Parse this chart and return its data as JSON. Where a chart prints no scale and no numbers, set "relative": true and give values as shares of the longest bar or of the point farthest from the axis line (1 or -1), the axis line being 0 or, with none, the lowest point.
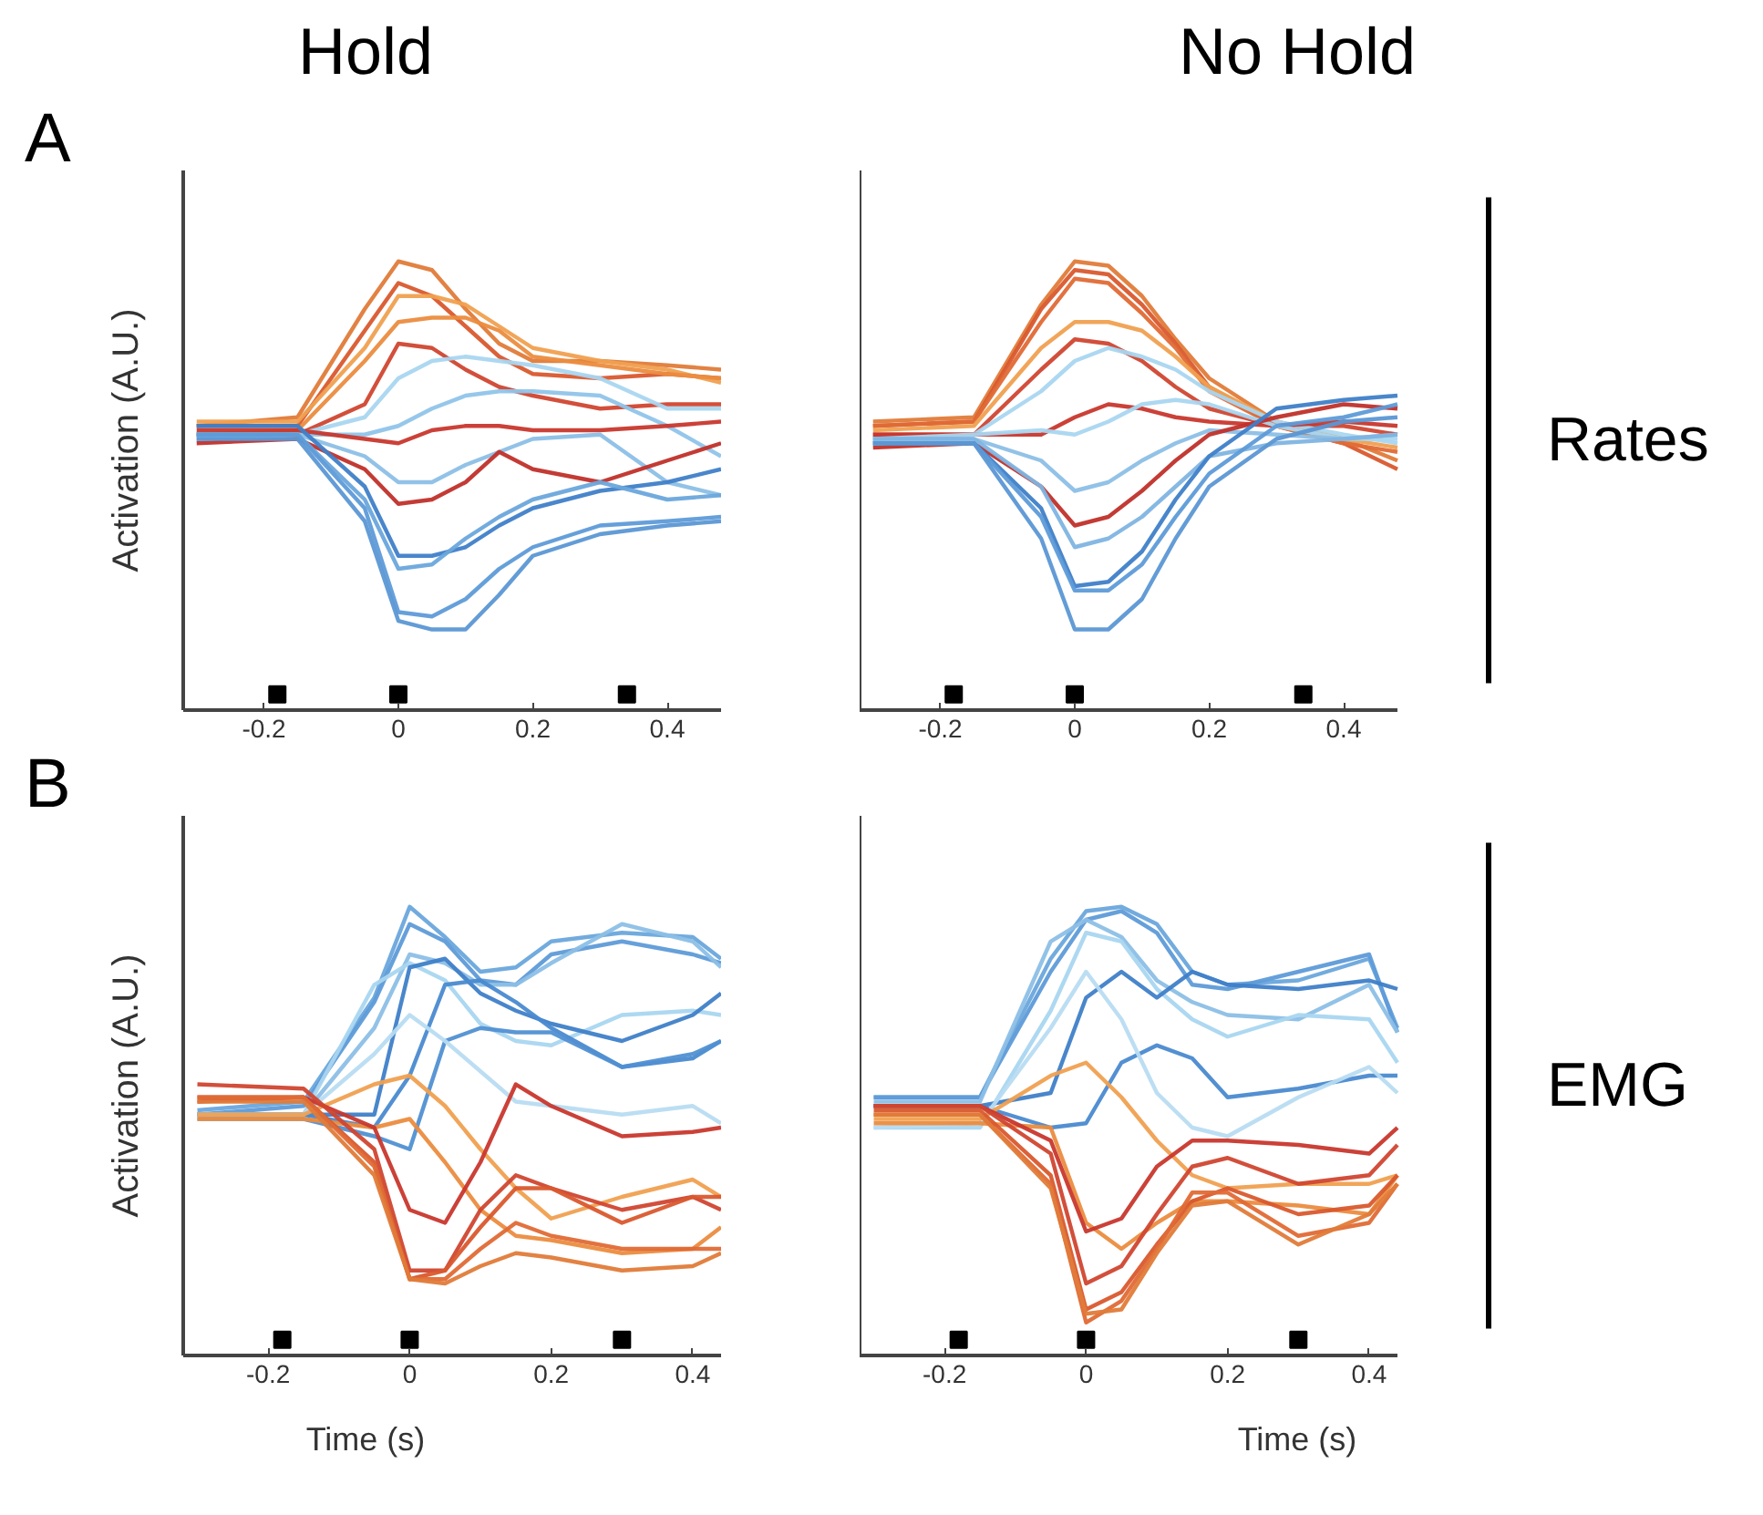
{
  "chart_data": [
    {
      "type": "line",
      "relative": true,
      "title": "Hold",
      "ylabel": "Activation (A.U.)",
      "annotations": [
        "A"
      ],
      "tick_labels": "x",
      "xlim": [
        -0.32,
        0.48
      ],
      "xticks": [
        -0.2,
        0,
        0.2,
        0.4
      ],
      "x": [
        -0.3,
        -0.15,
        -0.05,
        0,
        0.05,
        0.1,
        0.15,
        0.2,
        0.3,
        0.4,
        0.48
      ],
      "series": [
        {
          "color": "#e07b39",
          "values": [
            0.62,
            0.64,
            0.89,
            1.0,
            0.98,
            0.89,
            0.81,
            0.77,
            0.77,
            0.76,
            0.75
          ]
        },
        {
          "color": "#d9582e",
          "values": [
            0.62,
            0.62,
            0.84,
            0.95,
            0.92,
            0.85,
            0.78,
            0.74,
            0.73,
            0.74,
            0.73
          ]
        },
        {
          "color": "#f0a050",
          "values": [
            0.63,
            0.63,
            0.8,
            0.92,
            0.92,
            0.9,
            0.85,
            0.8,
            0.77,
            0.75,
            0.72
          ]
        },
        {
          "color": "#eb8c3f",
          "values": [
            0.6,
            0.61,
            0.77,
            0.86,
            0.87,
            0.87,
            0.84,
            0.78,
            0.76,
            0.74,
            0.73
          ]
        },
        {
          "color": "#d04630",
          "values": [
            0.6,
            0.6,
            0.67,
            0.81,
            0.8,
            0.75,
            0.71,
            0.69,
            0.66,
            0.67,
            0.67
          ]
        },
        {
          "color": "#a9d6f0",
          "values": [
            0.59,
            0.6,
            0.64,
            0.73,
            0.77,
            0.78,
            0.77,
            0.76,
            0.73,
            0.66,
            0.66
          ]
        },
        {
          "color": "#90c4ea",
          "values": [
            0.59,
            0.6,
            0.6,
            0.62,
            0.66,
            0.69,
            0.7,
            0.7,
            0.69,
            0.62,
            0.55
          ]
        },
        {
          "color": "#c8372d",
          "values": [
            0.61,
            0.61,
            0.59,
            0.58,
            0.61,
            0.62,
            0.62,
            0.61,
            0.61,
            0.62,
            0.63
          ]
        },
        {
          "color": "#8cbfe6",
          "values": [
            0.6,
            0.6,
            0.55,
            0.49,
            0.49,
            0.53,
            0.56,
            0.59,
            0.6,
            0.49,
            0.46
          ]
        },
        {
          "color": "#c0302a",
          "values": [
            0.58,
            0.59,
            0.52,
            0.44,
            0.45,
            0.49,
            0.56,
            0.52,
            0.49,
            0.54,
            0.58
          ]
        },
        {
          "color": "#3f7fc8",
          "values": [
            0.62,
            0.62,
            0.48,
            0.32,
            0.32,
            0.34,
            0.39,
            0.43,
            0.47,
            0.49,
            0.52
          ]
        },
        {
          "color": "#6aa6dc",
          "values": [
            0.6,
            0.6,
            0.45,
            0.29,
            0.3,
            0.36,
            0.41,
            0.45,
            0.49,
            0.45,
            0.46
          ]
        },
        {
          "color": "#5e9bd8",
          "values": [
            0.6,
            0.6,
            0.43,
            0.19,
            0.18,
            0.22,
            0.29,
            0.34,
            0.39,
            0.4,
            0.41
          ]
        },
        {
          "color": "#5b97d4",
          "values": [
            0.59,
            0.59,
            0.4,
            0.17,
            0.15,
            0.15,
            0.23,
            0.32,
            0.37,
            0.39,
            0.4
          ]
        },
        {
          "type": "scatter",
          "marker": "square",
          "color": "#000000",
          "x": [
            -0.18,
            0,
            0.34
          ],
          "values": [
            0,
            0,
            0
          ]
        }
      ]
    },
    {
      "type": "line",
      "relative": true,
      "title": "No Hold",
      "annotations": [
        "Rates"
      ],
      "tick_labels": "x",
      "xlim": [
        -0.32,
        0.48
      ],
      "xticks": [
        -0.2,
        0,
        0.2,
        0.4
      ],
      "x": [
        -0.3,
        -0.15,
        -0.05,
        0,
        0.05,
        0.1,
        0.15,
        0.2,
        0.3,
        0.4,
        0.48
      ],
      "series": [
        {
          "color": "#e07b39",
          "values": [
            0.63,
            0.64,
            0.9,
            1.0,
            0.99,
            0.92,
            0.82,
            0.73,
            0.63,
            0.59,
            0.54
          ]
        },
        {
          "color": "#d9582e",
          "values": [
            0.62,
            0.63,
            0.89,
            0.98,
            0.97,
            0.9,
            0.81,
            0.71,
            0.62,
            0.58,
            0.52
          ]
        },
        {
          "color": "#e06a35",
          "values": [
            0.62,
            0.63,
            0.86,
            0.96,
            0.95,
            0.88,
            0.8,
            0.7,
            0.62,
            0.58,
            0.56
          ]
        },
        {
          "color": "#f0a050",
          "values": [
            0.61,
            0.62,
            0.8,
            0.86,
            0.86,
            0.84,
            0.78,
            0.71,
            0.63,
            0.59,
            0.57
          ]
        },
        {
          "color": "#d04630",
          "values": [
            0.6,
            0.6,
            0.75,
            0.82,
            0.81,
            0.77,
            0.71,
            0.66,
            0.62,
            0.62,
            0.6
          ]
        },
        {
          "color": "#a9d6f0",
          "values": [
            0.59,
            0.6,
            0.7,
            0.77,
            0.8,
            0.78,
            0.75,
            0.7,
            0.63,
            0.6,
            0.58
          ]
        },
        {
          "color": "#c8372d",
          "values": [
            0.6,
            0.6,
            0.6,
            0.64,
            0.67,
            0.66,
            0.64,
            0.63,
            0.62,
            0.63,
            0.62
          ]
        },
        {
          "color": "#a9d6f0",
          "values": [
            0.59,
            0.6,
            0.61,
            0.6,
            0.63,
            0.67,
            0.68,
            0.67,
            0.62,
            0.59,
            0.59
          ]
        },
        {
          "color": "#8cbfe6",
          "values": [
            0.59,
            0.59,
            0.54,
            0.47,
            0.49,
            0.54,
            0.58,
            0.61,
            0.6,
            0.59,
            0.6
          ]
        },
        {
          "color": "#c0302a",
          "values": [
            0.57,
            0.58,
            0.48,
            0.39,
            0.41,
            0.47,
            0.54,
            0.6,
            0.64,
            0.67,
            0.66
          ]
        },
        {
          "color": "#7fb4e2",
          "values": [
            0.59,
            0.59,
            0.48,
            0.34,
            0.36,
            0.41,
            0.48,
            0.55,
            0.58,
            0.59,
            0.6
          ]
        },
        {
          "color": "#3f7fc8",
          "values": [
            0.58,
            0.58,
            0.43,
            0.25,
            0.26,
            0.33,
            0.45,
            0.55,
            0.66,
            0.68,
            0.69
          ]
        },
        {
          "color": "#5e9bd8",
          "values": [
            0.58,
            0.58,
            0.41,
            0.24,
            0.24,
            0.3,
            0.41,
            0.51,
            0.62,
            0.64,
            0.67
          ]
        },
        {
          "color": "#5b97d4",
          "values": [
            0.58,
            0.58,
            0.36,
            0.15,
            0.15,
            0.22,
            0.36,
            0.48,
            0.59,
            0.63,
            0.64
          ]
        },
        {
          "type": "scatter",
          "marker": "square",
          "color": "#000000",
          "x": [
            -0.18,
            0,
            0.34
          ],
          "values": [
            0,
            0,
            0
          ]
        }
      ]
    },
    {
      "type": "line",
      "relative": true,
      "xlabel": "Time (s)",
      "ylabel": "Activation (A.U.)",
      "annotations": [
        "B"
      ],
      "tick_labels": "x",
      "xlim": [
        -0.32,
        0.44
      ],
      "xticks": [
        -0.2,
        0,
        0.2,
        0.4
      ],
      "x": [
        -0.3,
        -0.15,
        -0.05,
        0,
        0.05,
        0.1,
        0.15,
        0.2,
        0.3,
        0.4,
        0.44
      ],
      "series": [
        {
          "color": "#6aa6dc",
          "values": [
            0.53,
            0.55,
            0.79,
            1.0,
            0.93,
            0.85,
            0.86,
            0.92,
            0.94,
            0.93,
            0.88
          ]
        },
        {
          "color": "#5e9bd8",
          "values": [
            0.52,
            0.54,
            0.78,
            0.96,
            0.92,
            0.83,
            0.82,
            0.89,
            0.92,
            0.89,
            0.87
          ]
        },
        {
          "color": "#8cbfe6",
          "values": [
            0.52,
            0.52,
            0.72,
            0.89,
            0.87,
            0.82,
            0.82,
            0.87,
            0.96,
            0.92,
            0.86
          ]
        },
        {
          "color": "#a9d6f0",
          "values": [
            0.52,
            0.52,
            0.82,
            0.87,
            0.83,
            0.73,
            0.69,
            0.68,
            0.75,
            0.76,
            0.75
          ]
        },
        {
          "color": "#3f7fc8",
          "values": [
            0.52,
            0.52,
            0.52,
            0.86,
            0.88,
            0.8,
            0.76,
            0.73,
            0.69,
            0.75,
            0.8
          ]
        },
        {
          "color": "#4a8ad0",
          "values": [
            0.52,
            0.52,
            0.49,
            0.61,
            0.82,
            0.83,
            0.78,
            0.72,
            0.63,
            0.65,
            0.69
          ]
        },
        {
          "color": "#5090d2",
          "values": [
            0.51,
            0.51,
            0.47,
            0.44,
            0.69,
            0.72,
            0.71,
            0.71,
            0.63,
            0.66,
            0.69
          ]
        },
        {
          "color": "#b8dcf2",
          "values": [
            0.52,
            0.52,
            0.66,
            0.75,
            0.69,
            0.62,
            0.55,
            0.54,
            0.52,
            0.54,
            0.5
          ]
        },
        {
          "color": "#f0a050",
          "values": [
            0.52,
            0.52,
            0.59,
            0.61,
            0.54,
            0.44,
            0.35,
            0.28,
            0.33,
            0.37,
            0.33
          ]
        },
        {
          "color": "#eb8c3f",
          "values": [
            0.51,
            0.51,
            0.49,
            0.51,
            0.41,
            0.3,
            0.24,
            0.23,
            0.2,
            0.21,
            0.26
          ]
        },
        {
          "color": "#c8372d",
          "values": [
            0.55,
            0.56,
            0.49,
            0.3,
            0.27,
            0.41,
            0.59,
            0.54,
            0.47,
            0.48,
            0.49
          ]
        },
        {
          "color": "#d04630",
          "values": [
            0.59,
            0.58,
            0.44,
            0.16,
            0.16,
            0.3,
            0.38,
            0.35,
            0.3,
            0.33,
            0.3
          ]
        },
        {
          "color": "#d9582e",
          "values": [
            0.56,
            0.56,
            0.41,
            0.14,
            0.16,
            0.26,
            0.35,
            0.35,
            0.27,
            0.33,
            0.33
          ]
        },
        {
          "color": "#e06a35",
          "values": [
            0.56,
            0.56,
            0.4,
            0.14,
            0.14,
            0.21,
            0.27,
            0.24,
            0.21,
            0.21,
            0.21
          ]
        },
        {
          "color": "#e07b39",
          "values": [
            0.55,
            0.55,
            0.38,
            0.14,
            0.13,
            0.17,
            0.2,
            0.19,
            0.16,
            0.17,
            0.2
          ]
        },
        {
          "type": "scatter",
          "marker": "square",
          "color": "#000000",
          "x": [
            -0.18,
            0,
            0.3
          ],
          "values": [
            0,
            0,
            0
          ]
        }
      ]
    },
    {
      "type": "line",
      "relative": true,
      "xlabel": "Time (s)",
      "annotations": [
        "EMG"
      ],
      "tick_labels": "x",
      "xlim": [
        -0.32,
        0.44
      ],
      "xticks": [
        -0.2,
        0,
        0.2,
        0.4
      ],
      "x": [
        -0.3,
        -0.15,
        -0.05,
        0,
        0.05,
        0.1,
        0.15,
        0.2,
        0.3,
        0.4,
        0.44
      ],
      "series": [
        {
          "color": "#6aa6dc",
          "values": [
            0.56,
            0.56,
            0.88,
            0.99,
            1.0,
            0.96,
            0.85,
            0.82,
            0.83,
            0.88,
            0.72
          ]
        },
        {
          "color": "#5e9bd8",
          "values": [
            0.56,
            0.56,
            0.85,
            0.97,
            0.99,
            0.94,
            0.82,
            0.81,
            0.85,
            0.89,
            0.71
          ]
        },
        {
          "color": "#8cbfe6",
          "values": [
            0.55,
            0.55,
            0.92,
            0.97,
            0.93,
            0.83,
            0.78,
            0.75,
            0.74,
            0.82,
            0.71
          ]
        },
        {
          "color": "#a9d6f0",
          "values": [
            0.49,
            0.49,
            0.76,
            0.94,
            0.92,
            0.81,
            0.74,
            0.7,
            0.75,
            0.74,
            0.64
          ]
        },
        {
          "color": "#3f7fc8",
          "values": [
            0.54,
            0.54,
            0.57,
            0.79,
            0.85,
            0.79,
            0.85,
            0.82,
            0.81,
            0.83,
            0.81
          ]
        },
        {
          "color": "#4a8ad0",
          "values": [
            0.54,
            0.54,
            0.49,
            0.5,
            0.64,
            0.68,
            0.65,
            0.56,
            0.58,
            0.61,
            0.61
          ]
        },
        {
          "color": "#b8dcf2",
          "values": [
            0.49,
            0.5,
            0.72,
            0.85,
            0.74,
            0.57,
            0.49,
            0.47,
            0.56,
            0.63,
            0.57
          ]
        },
        {
          "color": "#f0a050",
          "values": [
            0.51,
            0.51,
            0.61,
            0.64,
            0.56,
            0.46,
            0.38,
            0.35,
            0.36,
            0.36,
            0.38
          ]
        },
        {
          "color": "#eb8c3f",
          "values": [
            0.5,
            0.5,
            0.49,
            0.27,
            0.21,
            0.27,
            0.32,
            0.32,
            0.31,
            0.29,
            0.38
          ]
        },
        {
          "color": "#c8372d",
          "values": [
            0.54,
            0.54,
            0.46,
            0.25,
            0.28,
            0.4,
            0.46,
            0.46,
            0.45,
            0.43,
            0.49
          ]
        },
        {
          "color": "#d04630",
          "values": [
            0.54,
            0.54,
            0.43,
            0.13,
            0.17,
            0.29,
            0.4,
            0.42,
            0.36,
            0.38,
            0.45
          ]
        },
        {
          "color": "#d9582e",
          "values": [
            0.53,
            0.53,
            0.38,
            0.07,
            0.11,
            0.22,
            0.32,
            0.35,
            0.29,
            0.31,
            0.38
          ]
        },
        {
          "color": "#e06a35",
          "values": [
            0.52,
            0.52,
            0.36,
            0.04,
            0.09,
            0.21,
            0.34,
            0.34,
            0.24,
            0.27,
            0.36
          ]
        },
        {
          "color": "#e07b39",
          "values": [
            0.52,
            0.52,
            0.35,
            0.06,
            0.07,
            0.2,
            0.31,
            0.32,
            0.22,
            0.29,
            0.36
          ]
        },
        {
          "type": "scatter",
          "marker": "square",
          "color": "#000000",
          "x": [
            -0.18,
            0,
            0.3
          ],
          "values": [
            0,
            0,
            0
          ]
        }
      ]
    }
  ]
}
